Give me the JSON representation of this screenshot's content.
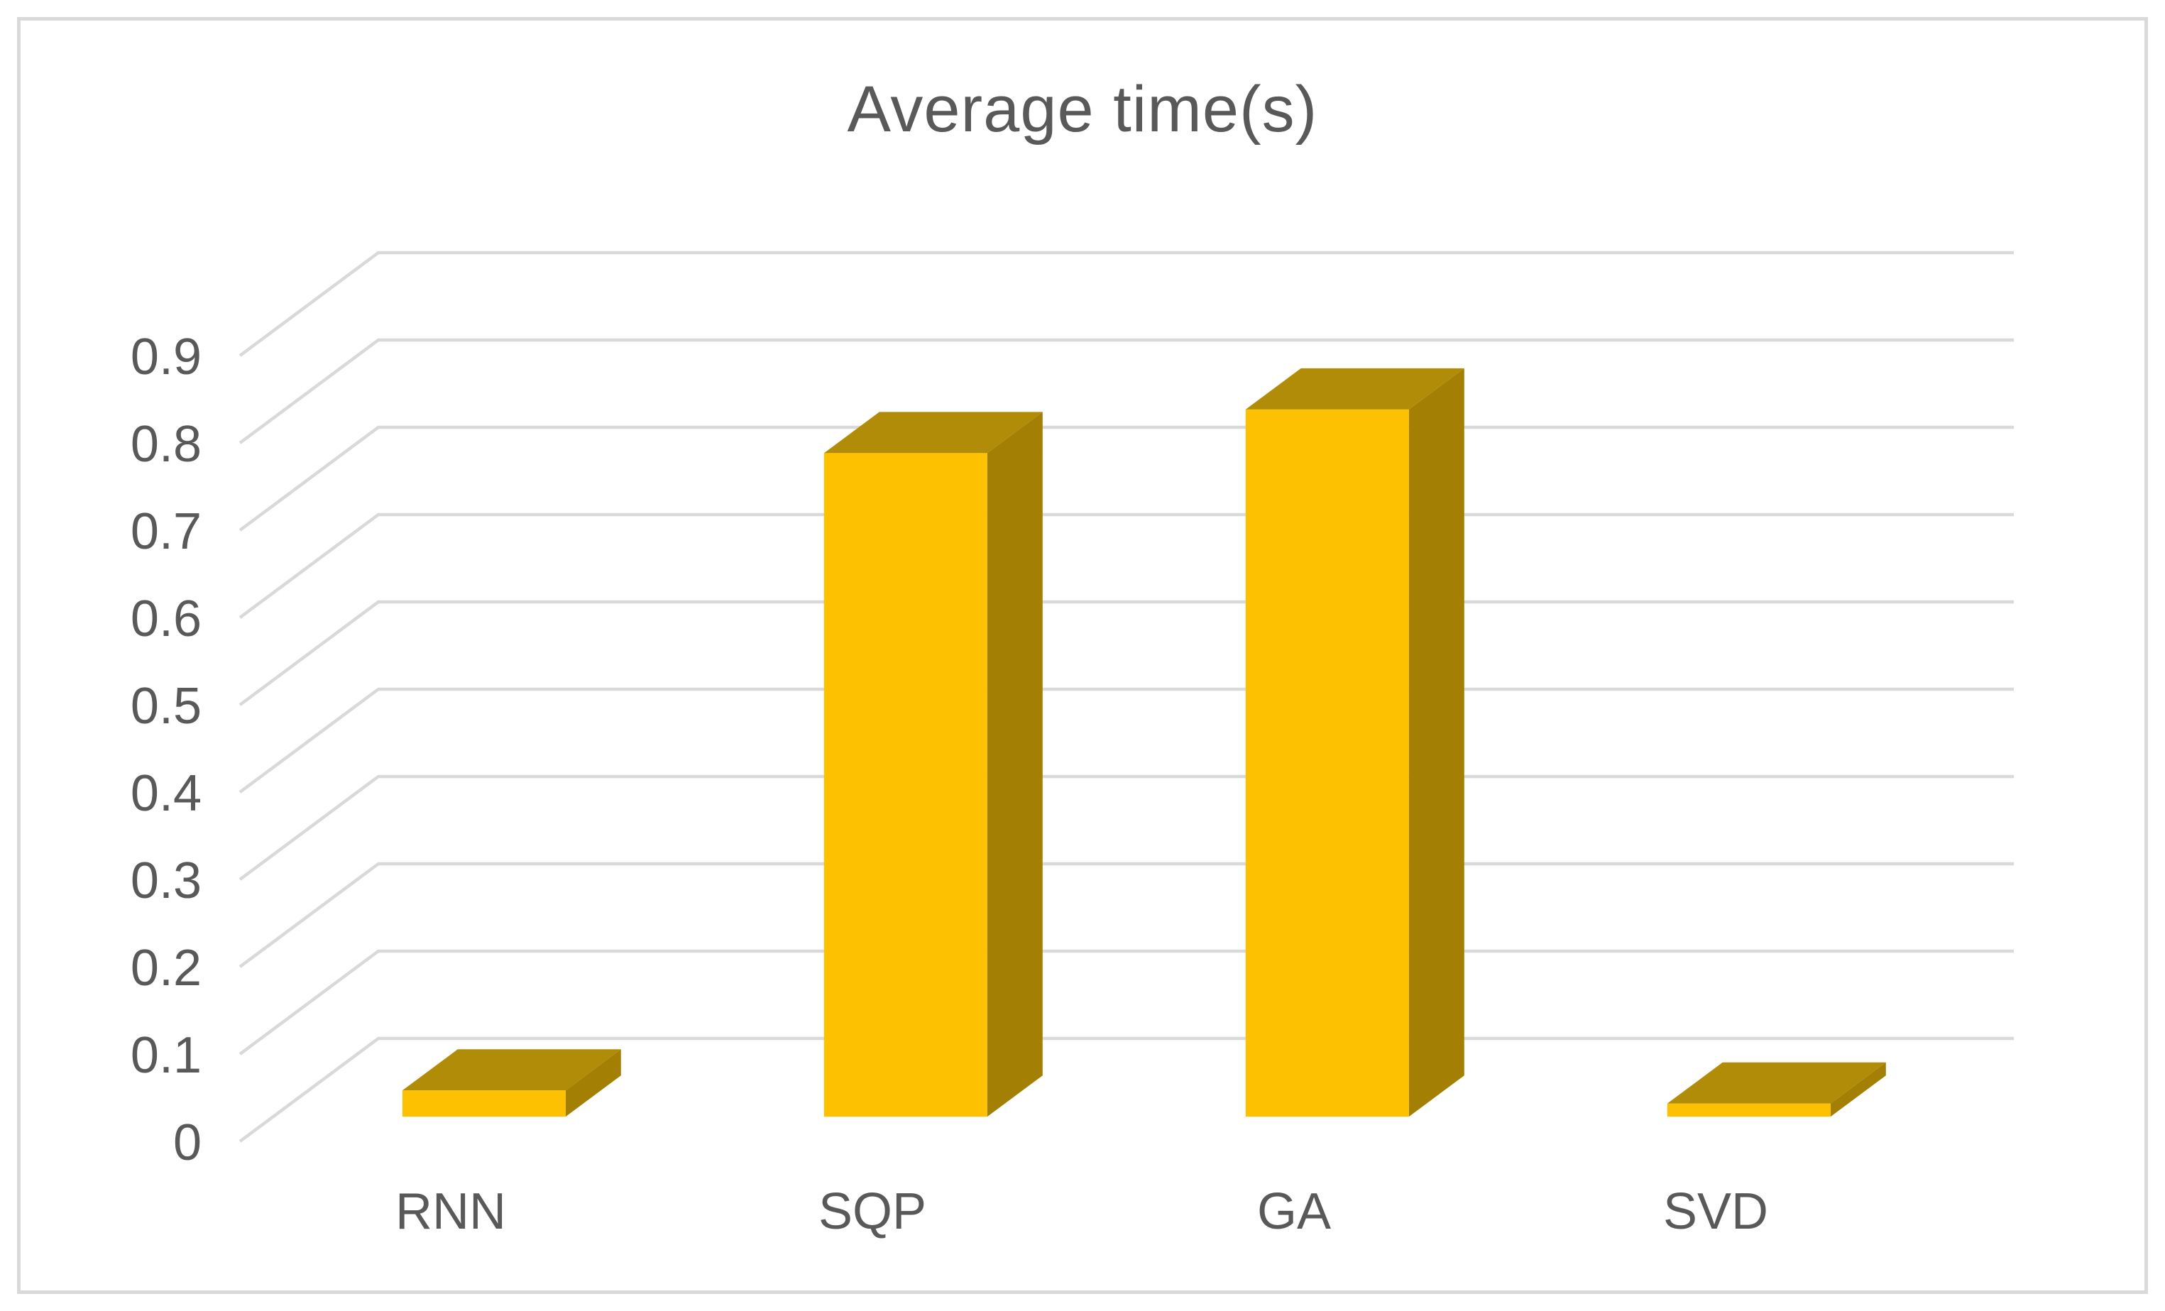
{
  "page": {
    "background": "#ffffff"
  },
  "frame": {
    "border_color": "#d9d9d9"
  },
  "chart_data": {
    "type": "bar",
    "style": "3d-clustered-column",
    "title": "Average time(s)",
    "categories": [
      "RNN",
      "SQP",
      "GA",
      "SVD"
    ],
    "values": [
      0.03,
      0.76,
      0.81,
      0.015
    ],
    "xlabel": "",
    "ylabel": "",
    "ylim": [
      0,
      0.9
    ],
    "ytick_step": 0.1,
    "ytick_labels": [
      "0",
      "0.1",
      "0.2",
      "0.3",
      "0.4",
      "0.5",
      "0.6",
      "0.7",
      "0.8",
      "0.9"
    ],
    "grid": true,
    "legend": false,
    "colors": {
      "title_text": "#595959",
      "axis_text": "#595959",
      "gridline": "#d9d9d9",
      "bar_front": "#fec101",
      "bar_top": "#b18c08",
      "bar_side": "#a38004"
    }
  }
}
